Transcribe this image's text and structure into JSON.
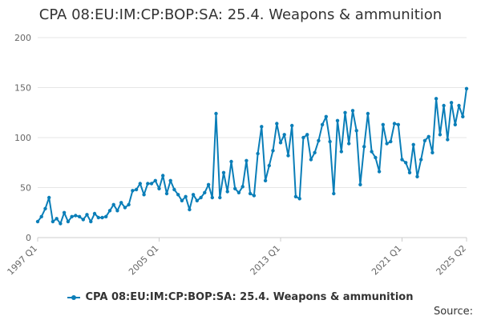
{
  "colors": {
    "series": "#0a7eb8",
    "grid": "#e6e6e6",
    "axis_text": "#666666"
  },
  "source_label": "Source:",
  "chart_data": {
    "type": "line",
    "title": "CPA 08:EU:IM:CP:BOP:SA: 25.4. Weapons & ammunition",
    "xlabel": "",
    "ylabel": "",
    "ylim": [
      0,
      200
    ],
    "yticks": [
      0,
      50,
      100,
      150,
      200
    ],
    "grid": true,
    "legend_position": "bottom",
    "x_tick_labels": [
      "1997 Q1",
      "2005 Q1",
      "2013 Q1",
      "2021 Q1",
      "2025 Q2"
    ],
    "series": [
      {
        "name": "CPA 08:EU:IM:CP:BOP:SA: 25.4. Weapons & ammunition",
        "x": [
          "1997 Q1",
          "1997 Q2",
          "1997 Q3",
          "1997 Q4",
          "1998 Q1",
          "1998 Q2",
          "1998 Q3",
          "1998 Q4",
          "1999 Q1",
          "1999 Q2",
          "1999 Q3",
          "1999 Q4",
          "2000 Q1",
          "2000 Q2",
          "2000 Q3",
          "2000 Q4",
          "2001 Q1",
          "2001 Q2",
          "2001 Q3",
          "2001 Q4",
          "2002 Q1",
          "2002 Q2",
          "2002 Q3",
          "2002 Q4",
          "2003 Q1",
          "2003 Q2",
          "2003 Q3",
          "2003 Q4",
          "2004 Q1",
          "2004 Q2",
          "2004 Q3",
          "2004 Q4",
          "2005 Q1",
          "2005 Q2",
          "2005 Q3",
          "2005 Q4",
          "2006 Q1",
          "2006 Q2",
          "2006 Q3",
          "2006 Q4",
          "2007 Q1",
          "2007 Q2",
          "2007 Q3",
          "2007 Q4",
          "2008 Q1",
          "2008 Q2",
          "2008 Q3",
          "2008 Q4",
          "2009 Q1",
          "2009 Q2",
          "2009 Q3",
          "2009 Q4",
          "2010 Q1",
          "2010 Q2",
          "2010 Q3",
          "2010 Q4",
          "2011 Q1",
          "2011 Q2",
          "2011 Q3",
          "2011 Q4",
          "2012 Q1",
          "2012 Q2",
          "2012 Q3",
          "2012 Q4",
          "2013 Q1",
          "2013 Q2",
          "2013 Q3",
          "2013 Q4",
          "2014 Q1",
          "2014 Q2",
          "2014 Q3",
          "2014 Q4",
          "2015 Q1",
          "2015 Q2",
          "2015 Q3",
          "2015 Q4",
          "2016 Q1",
          "2016 Q2",
          "2016 Q3",
          "2016 Q4",
          "2017 Q1",
          "2017 Q2",
          "2017 Q3",
          "2017 Q4",
          "2018 Q1",
          "2018 Q2",
          "2018 Q3",
          "2018 Q4",
          "2019 Q1",
          "2019 Q2",
          "2019 Q3",
          "2019 Q4",
          "2020 Q1",
          "2020 Q2",
          "2020 Q3",
          "2020 Q4",
          "2021 Q1",
          "2021 Q2",
          "2021 Q3",
          "2021 Q4",
          "2022 Q1",
          "2022 Q2",
          "2022 Q3",
          "2022 Q4",
          "2023 Q1",
          "2023 Q2",
          "2023 Q3",
          "2023 Q4",
          "2024 Q1",
          "2024 Q2",
          "2024 Q3",
          "2024 Q4",
          "2025 Q1",
          "2025 Q2"
        ],
        "values": [
          16,
          21,
          29,
          40,
          16,
          19,
          14,
          25,
          16,
          21,
          22,
          21,
          18,
          23,
          16,
          24,
          20,
          20,
          21,
          27,
          33,
          27,
          35,
          30,
          33,
          47,
          48,
          54,
          43,
          54,
          54,
          57,
          49,
          62,
          44,
          57,
          48,
          43,
          37,
          41,
          28,
          43,
          37,
          40,
          45,
          53,
          40,
          124,
          40,
          65,
          46,
          76,
          49,
          45,
          51,
          77,
          44,
          42,
          84,
          111,
          57,
          72,
          87,
          114,
          95,
          103,
          82,
          112,
          41,
          39,
          100,
          103,
          78,
          85,
          97,
          113,
          121,
          96,
          44,
          117,
          86,
          125,
          94,
          127,
          107,
          53,
          91,
          124,
          86,
          80,
          66,
          113,
          94,
          96,
          114,
          113,
          78,
          75,
          65,
          93,
          61,
          78,
          97,
          101,
          85,
          139,
          103,
          132,
          98,
          135,
          113,
          132,
          121,
          149
        ]
      }
    ]
  }
}
